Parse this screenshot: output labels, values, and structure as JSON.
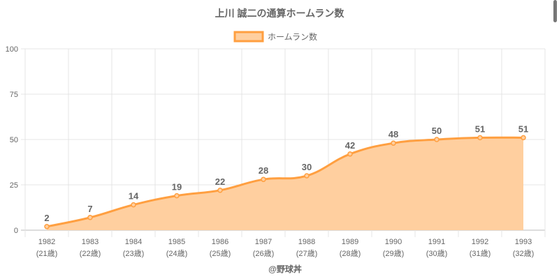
{
  "chart_data": {
    "type": "area",
    "title": "上川 誠二の通算ホームラン数",
    "legend": {
      "label": "ホームラン数",
      "position": "top"
    },
    "categories": [
      "1982",
      "1983",
      "1984",
      "1985",
      "1986",
      "1987",
      "1988",
      "1989",
      "1990",
      "1991",
      "1992",
      "1993"
    ],
    "sublabels": [
      "(21歳)",
      "(22歳)",
      "(23歳)",
      "(24歳)",
      "(25歳)",
      "(26歳)",
      "(27歳)",
      "(28歳)",
      "(29歳)",
      "(30歳)",
      "(31歳)",
      "(32歳)"
    ],
    "series": [
      {
        "name": "ホームラン数",
        "values": [
          2,
          7,
          14,
          19,
          22,
          28,
          30,
          42,
          48,
          50,
          51,
          51
        ]
      }
    ],
    "ylim": [
      0,
      100
    ],
    "yticks": [
      0,
      25,
      50,
      75,
      100
    ],
    "grid": true,
    "xlabel": "",
    "ylabel": "",
    "colors": {
      "line": "#ff9f40",
      "fill": "#ffcf9f"
    }
  },
  "credit": "@野球丼"
}
